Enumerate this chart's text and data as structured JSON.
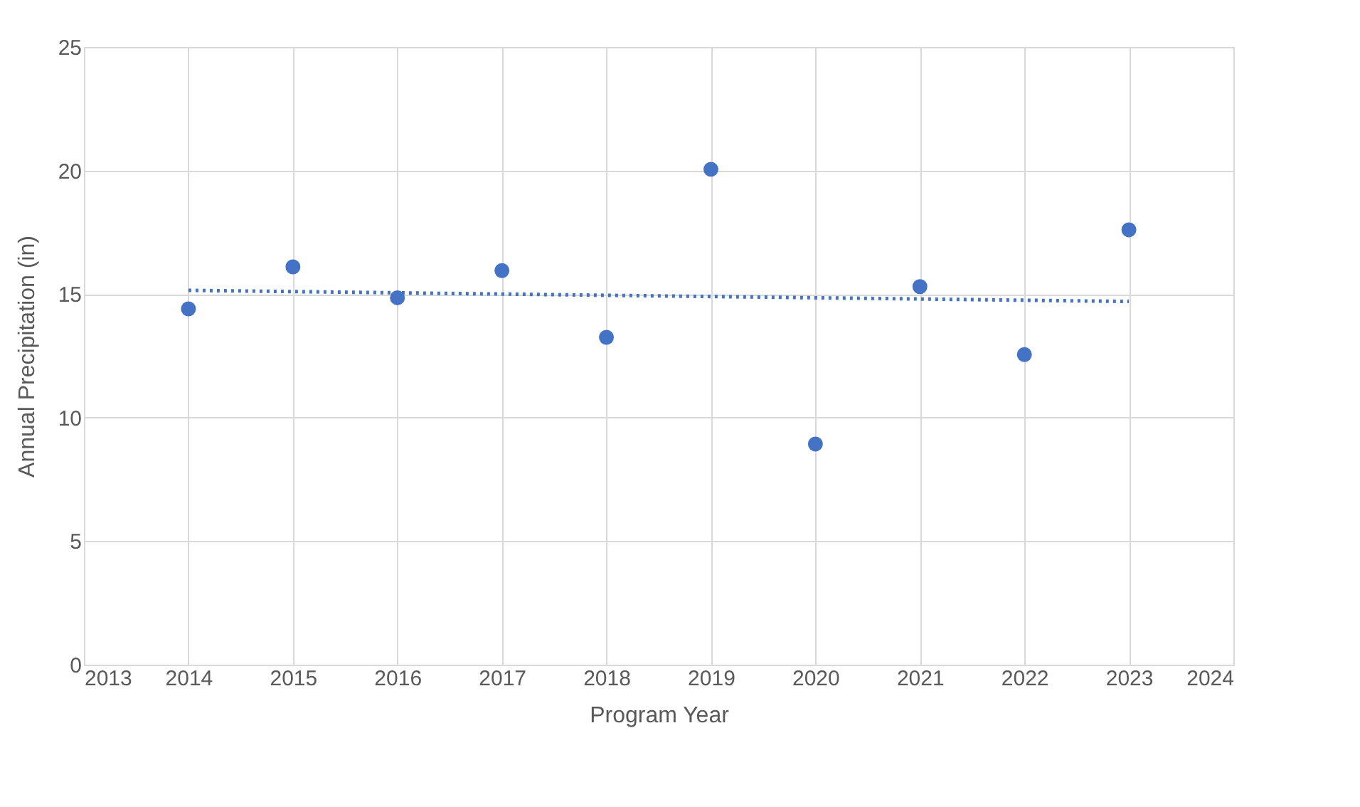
{
  "chart_data": {
    "type": "scatter",
    "xlabel": "Program Year",
    "ylabel": "Annual Precipitation (in)",
    "x": [
      2014,
      2015,
      2016,
      2017,
      2018,
      2019,
      2020,
      2021,
      2022,
      2023
    ],
    "series": [
      {
        "color": "#4472c4",
        "marker": "circle",
        "values": [
          14.4,
          16.1,
          14.85,
          15.95,
          13.25,
          20.05,
          8.93,
          15.3,
          12.55,
          17.6
        ]
      },
      {
        "type": "line",
        "color": "#4472c4",
        "line_style": "dotted",
        "x": [
          2014,
          2023
        ],
        "values": [
          15.15,
          14.7
        ]
      }
    ],
    "xlim": [
      2013,
      2024
    ],
    "xticks": [
      2013,
      2014,
      2015,
      2016,
      2017,
      2018,
      2019,
      2020,
      2021,
      2022,
      2023,
      2024
    ],
    "ylim": [
      0,
      25
    ],
    "yticks": [
      0,
      5,
      10,
      15,
      20,
      25
    ],
    "grid": true
  }
}
